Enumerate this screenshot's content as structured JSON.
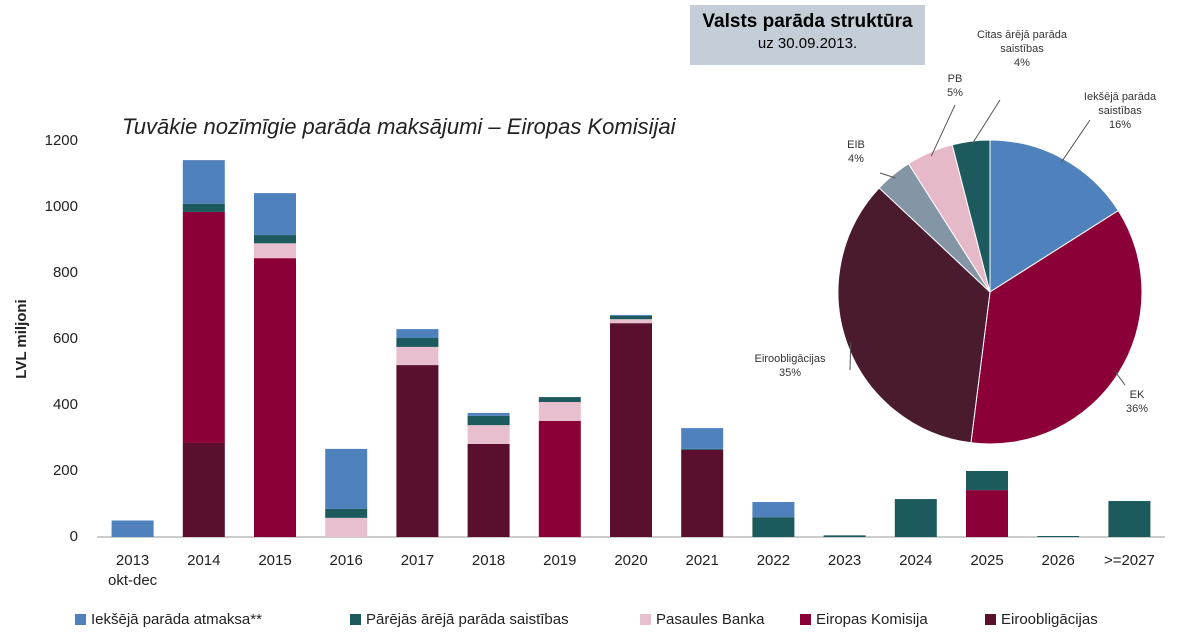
{
  "chart_data": [
    {
      "type": "stacked_bar",
      "title": "Tuvākie nozīmīgie parāda maksājumi – Eiropas Komisijai",
      "y_label": "LVL miljoni",
      "categories": [
        "2013\nokt-dec",
        "2014",
        "2015",
        "2016",
        "2017",
        "2018",
        "2019",
        "2020",
        "2021",
        "2022",
        "2023",
        "2024",
        "2025",
        "2026",
        ">=2027"
      ],
      "series": [
        {
          "name": "Iekšējā parāda atmaksa**",
          "color": "#4f81bd",
          "values": [
            50,
            132,
            127,
            182,
            27,
            9,
            0,
            3,
            63,
            46,
            0,
            0,
            0,
            0,
            0
          ]
        },
        {
          "name": "Pārējās ārējā parāda saistības",
          "color": "#1d5a5e",
          "values": [
            0,
            25,
            25,
            27,
            27,
            28,
            15,
            10,
            3,
            60,
            5,
            115,
            58,
            3,
            109
          ]
        },
        {
          "name": "Pasaules Banka",
          "color": "#e8bfcf",
          "values": [
            0,
            0,
            45,
            58,
            55,
            57,
            57,
            12,
            0,
            0,
            0,
            0,
            0,
            0,
            0
          ]
        },
        {
          "name": "Eiropas Komisija",
          "color": "#8b0036",
          "values": [
            0,
            700,
            845,
            0,
            0,
            0,
            352,
            0,
            0,
            0,
            0,
            0,
            142,
            0,
            0
          ]
        },
        {
          "name": "Eiroobligācijas",
          "color": "#5a0f2e",
          "values": [
            0,
            285,
            0,
            0,
            521,
            282,
            0,
            648,
            264,
            0,
            0,
            0,
            0,
            0,
            0
          ]
        }
      ],
      "ylim": [
        0,
        1200
      ],
      "yticks": [
        0,
        200,
        400,
        600,
        800,
        1000,
        1200
      ],
      "grid": false,
      "legend": "bottom"
    },
    {
      "type": "pie",
      "title": "Valsts parāda struktūra",
      "subtitle": "uz 30.09.2013.",
      "categories": [
        "Iekšējā parāda saistības",
        "EK",
        "Eiroobligācijas",
        "EIB",
        "PB",
        "Citas ārējā parāda saistības"
      ],
      "values": [
        16,
        36,
        35,
        4,
        5,
        4
      ],
      "value_labels": [
        "16%",
        "36%",
        "35%",
        "4%",
        "5%",
        "4%"
      ],
      "colors": [
        "#4f81bd",
        "#8b0036",
        "#4a1a2e",
        "#8496a6",
        "#e6b9c9",
        "#1d5a5e"
      ]
    }
  ]
}
